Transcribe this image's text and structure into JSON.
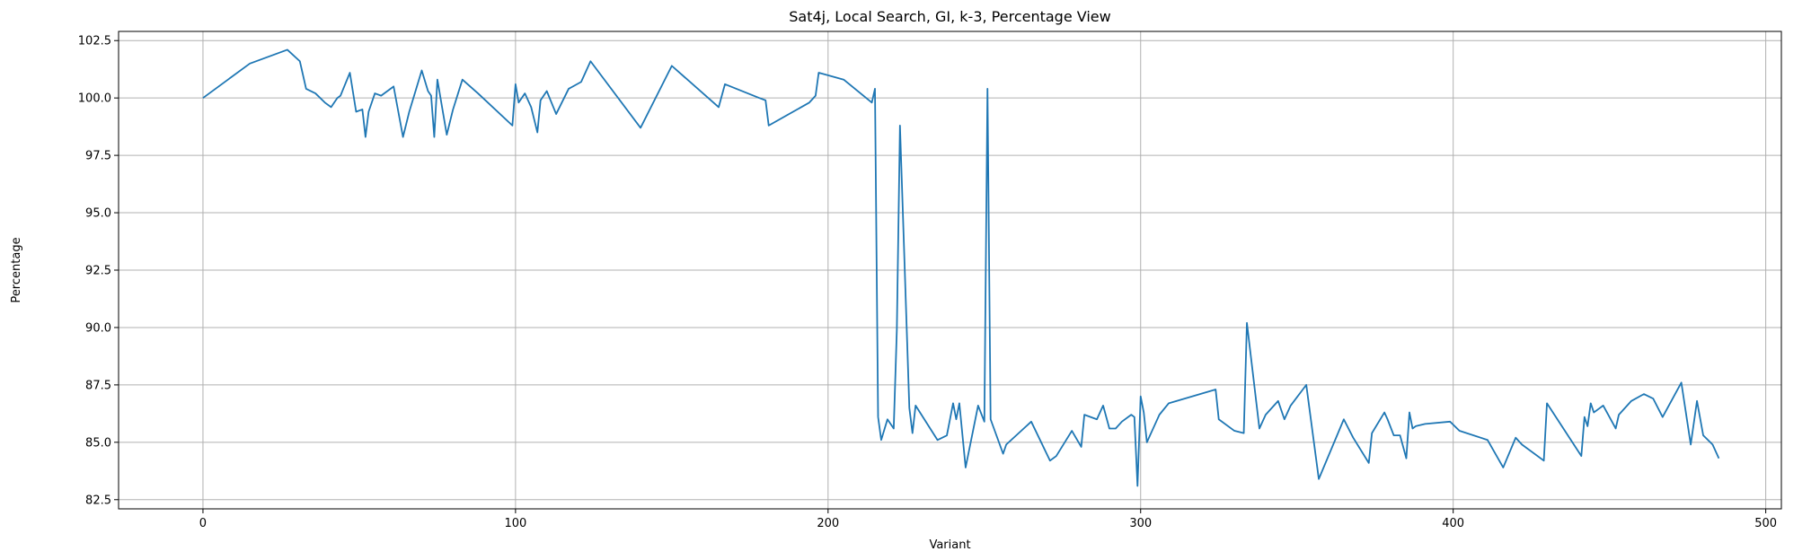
{
  "chart_data": {
    "type": "line",
    "title": "Sat4j, Local Search, GI, k-3, Percentage View",
    "xlabel": "Variant",
    "ylabel": "Percentage",
    "xlim": [
      -27,
      505
    ],
    "ylim": [
      82.1,
      102.9
    ],
    "xticks": [
      0,
      100,
      200,
      300,
      400,
      500
    ],
    "yticks": [
      82.5,
      85.0,
      87.5,
      90.0,
      92.5,
      95.0,
      97.5,
      100.0,
      102.5
    ],
    "ytick_labels": [
      "82.5",
      "85.0",
      "87.5",
      "90.0",
      "92.5",
      "95.0",
      "97.5",
      "100.0",
      "102.5"
    ],
    "grid": true,
    "line_color": "#1f77b4",
    "series": [
      {
        "x": [
          0,
          15,
          27,
          31,
          33,
          36,
          39,
          41,
          43,
          44,
          47,
          49,
          51,
          52,
          53,
          55,
          57,
          61,
          64,
          66,
          70,
          72,
          73,
          74,
          75,
          78,
          80,
          83,
          88,
          99,
          100,
          101,
          103,
          105,
          107,
          108,
          110,
          113,
          117,
          121,
          124,
          140,
          150,
          165,
          167,
          178,
          180,
          181,
          194,
          196,
          197,
          205,
          214,
          215,
          216,
          217,
          219,
          221,
          222,
          223,
          226,
          227,
          228,
          235,
          238,
          240,
          241,
          242,
          244,
          248,
          250,
          251,
          252,
          256,
          257,
          265,
          271,
          273,
          278,
          281,
          282,
          286,
          288,
          290,
          292,
          294,
          297,
          298,
          299,
          300,
          301,
          302,
          303,
          305,
          306,
          309,
          324,
          325,
          330,
          333,
          334,
          338,
          340,
          344,
          346,
          348,
          353,
          357,
          365,
          368,
          373,
          374,
          378,
          379,
          381,
          383,
          385,
          386,
          387,
          388,
          391,
          399,
          402,
          411,
          416,
          420,
          422,
          429,
          430,
          441,
          442,
          443,
          444,
          445,
          448,
          452,
          453,
          457,
          461,
          464,
          467,
          473,
          476,
          478,
          480,
          483,
          485
        ],
        "y": [
          100.0,
          101.5,
          102.1,
          101.6,
          100.4,
          100.2,
          99.8,
          99.6,
          100.0,
          100.1,
          101.1,
          99.4,
          99.5,
          98.3,
          99.4,
          100.2,
          100.1,
          100.5,
          98.3,
          99.4,
          101.2,
          100.3,
          100.1,
          98.3,
          100.8,
          98.4,
          99.5,
          100.8,
          100.2,
          98.8,
          100.6,
          99.8,
          100.2,
          99.6,
          98.5,
          99.9,
          100.3,
          99.3,
          100.4,
          100.7,
          101.6,
          98.7,
          101.4,
          99.6,
          100.6,
          100.0,
          99.9,
          98.8,
          99.8,
          100.1,
          101.1,
          100.8,
          99.8,
          100.4,
          86.1,
          85.1,
          86.0,
          85.6,
          89.9,
          98.8,
          86.5,
          85.4,
          86.6,
          85.1,
          85.3,
          86.7,
          86.0,
          86.7,
          83.9,
          86.6,
          85.9,
          100.4,
          86.0,
          84.5,
          84.9,
          85.9,
          84.2,
          84.4,
          85.5,
          84.8,
          86.2,
          86.0,
          86.6,
          85.6,
          85.6,
          85.9,
          86.2,
          86.1,
          83.1,
          87.0,
          86.3,
          85.0,
          85.3,
          85.9,
          86.2,
          86.7,
          87.3,
          86.0,
          85.5,
          85.4,
          90.2,
          85.6,
          86.2,
          86.8,
          86.0,
          86.6,
          87.5,
          83.4,
          86.0,
          85.2,
          84.1,
          85.4,
          86.3,
          86.0,
          85.3,
          85.3,
          84.3,
          86.3,
          85.6,
          85.7,
          85.8,
          85.9,
          85.5,
          85.1,
          83.9,
          85.2,
          84.9,
          84.2,
          86.7,
          84.4,
          86.1,
          85.7,
          86.7,
          86.3,
          86.6,
          85.6,
          86.2,
          86.8,
          87.1,
          86.9,
          86.1,
          87.6,
          84.9,
          86.8,
          85.3,
          84.9,
          84.3
        ]
      }
    ]
  }
}
